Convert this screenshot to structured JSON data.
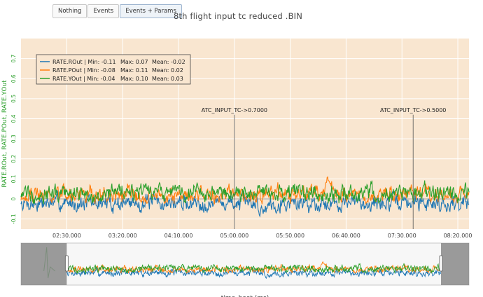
{
  "toolbar": {
    "buttons": [
      {
        "label": "Nothing",
        "active": false
      },
      {
        "label": "Events",
        "active": false
      },
      {
        "label": "Events + Params",
        "active": true
      }
    ]
  },
  "title": "8th flight input tc reduced .BIN",
  "colors": {
    "plot_bg": "#f9e6d0",
    "roll": "#1f77b4",
    "pitch": "#ff7f0e",
    "yaw": "#2ca02c",
    "axis_label": "#2ca02c"
  },
  "chart_data": {
    "type": "line",
    "ylabel": "RATE.ROut, RATE.POut, RATE.YOut",
    "xlabel": "time_boot (ms)",
    "ylim": [
      -0.15,
      0.8
    ],
    "xlim_seconds": [
      109,
      510
    ],
    "x_ticks": [
      {
        "t": 150,
        "label": "02:30.000"
      },
      {
        "t": 200,
        "label": "03:20.000"
      },
      {
        "t": 250,
        "label": "04:10.000"
      },
      {
        "t": 300,
        "label": "05:00.000"
      },
      {
        "t": 350,
        "label": "05:50.000"
      },
      {
        "t": 400,
        "label": "06:40.000"
      },
      {
        "t": 450,
        "label": "07:30.000"
      },
      {
        "t": 500,
        "label": "08:20.000"
      }
    ],
    "y_ticks": [
      -0.1,
      0,
      0.1,
      0.2,
      0.3,
      0.4,
      0.5,
      0.6,
      0.7
    ],
    "annotations": [
      {
        "t": 300,
        "text": "ATC_INPUT_TC->0.7000"
      },
      {
        "t": 460,
        "text": "ATC_INPUT_TC->0.5000"
      }
    ],
    "legend_position": "top-left",
    "series": [
      {
        "name": "RATE.ROut",
        "min": "Min: -0.11",
        "max": "Max: 0.07",
        "mean": "Mean: -0.02",
        "mean_value": -0.02,
        "min_value": -0.11,
        "max_value": 0.07
      },
      {
        "name": "RATE.POut",
        "min": "Min: -0.08",
        "max": "Max: 0.11",
        "mean": "Mean: 0.02",
        "mean_value": 0.02,
        "min_value": -0.08,
        "max_value": 0.11
      },
      {
        "name": "RATE.YOut",
        "min": "Min: -0.04",
        "max": "Max: 0.10",
        "mean": "Mean: 0.03",
        "mean_value": 0.03,
        "min_value": -0.04,
        "max_value": 0.1
      }
    ],
    "range_slider": {
      "full_range_seconds": [
        60,
        540
      ],
      "selected_seconds": [
        109,
        510
      ]
    }
  }
}
